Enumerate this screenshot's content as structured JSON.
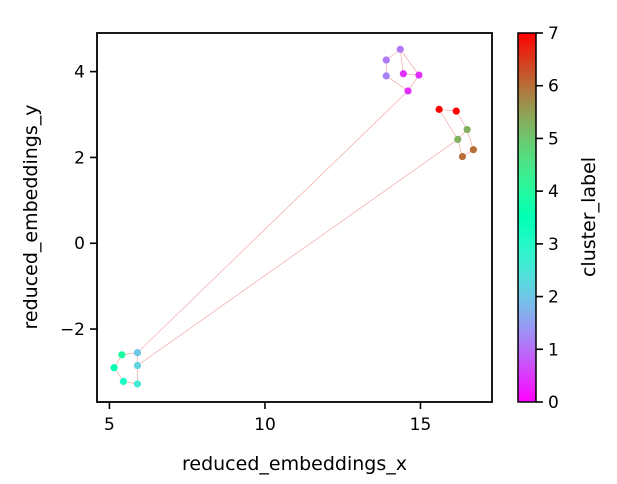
{
  "chart_data": {
    "type": "scatter",
    "title": "",
    "xlabel": "reduced_embeddings_x",
    "ylabel": "reduced_embeddings_y",
    "xlim": [
      4.6,
      17.3
    ],
    "ylim": [
      -3.7,
      4.9
    ],
    "xticks": [
      5,
      10,
      15
    ],
    "yticks": [
      -2,
      0,
      2,
      4
    ],
    "xtick_labels": [
      "5",
      "10",
      "15"
    ],
    "ytick_labels": [
      "−2",
      "0",
      "2",
      "4"
    ],
    "grid": false,
    "colorbar": {
      "label": "cluster_label",
      "range": [
        0,
        7
      ],
      "ticks": [
        0,
        1,
        2,
        3,
        4,
        5,
        6,
        7
      ],
      "tick_labels": [
        "0",
        "1",
        "2",
        "3",
        "4",
        "5",
        "6",
        "7"
      ],
      "colormap": "rainbow"
    },
    "points": [
      {
        "x": 14.35,
        "y": 4.52,
        "cluster": 1.1
      },
      {
        "x": 13.9,
        "y": 4.27,
        "cluster": 1.1
      },
      {
        "x": 13.9,
        "y": 3.9,
        "cluster": 1.2
      },
      {
        "x": 14.45,
        "y": 3.95,
        "cluster": 0.4
      },
      {
        "x": 14.95,
        "y": 3.92,
        "cluster": 0.4
      },
      {
        "x": 14.6,
        "y": 3.55,
        "cluster": 0.4
      },
      {
        "x": 15.6,
        "y": 3.12,
        "cluster": 7.0
      },
      {
        "x": 16.15,
        "y": 3.08,
        "cluster": 7.0
      },
      {
        "x": 16.5,
        "y": 2.65,
        "cluster": 5.3
      },
      {
        "x": 16.2,
        "y": 2.42,
        "cluster": 5.3
      },
      {
        "x": 16.7,
        "y": 2.18,
        "cluster": 6.0
      },
      {
        "x": 16.35,
        "y": 2.02,
        "cluster": 6.0
      },
      {
        "x": 5.4,
        "y": -2.6,
        "cluster": 3.9
      },
      {
        "x": 5.9,
        "y": -2.55,
        "cluster": 2.0
      },
      {
        "x": 5.15,
        "y": -2.9,
        "cluster": 3.5
      },
      {
        "x": 5.9,
        "y": -2.85,
        "cluster": 2.2
      },
      {
        "x": 5.45,
        "y": -3.22,
        "cluster": 3.1
      },
      {
        "x": 5.9,
        "y": -3.28,
        "cluster": 2.6
      }
    ],
    "edges": [
      [
        0,
        1
      ],
      [
        1,
        2
      ],
      [
        0,
        3
      ],
      [
        0,
        4
      ],
      [
        3,
        4
      ],
      [
        4,
        5
      ],
      [
        2,
        5
      ],
      [
        6,
        7
      ],
      [
        7,
        8
      ],
      [
        8,
        9
      ],
      [
        6,
        9
      ],
      [
        8,
        10
      ],
      [
        10,
        11
      ],
      [
        9,
        11
      ],
      [
        12,
        13
      ],
      [
        12,
        14
      ],
      [
        14,
        16
      ],
      [
        16,
        17
      ],
      [
        15,
        17
      ],
      [
        13,
        15
      ],
      [
        5,
        13
      ],
      [
        9,
        15
      ]
    ]
  }
}
